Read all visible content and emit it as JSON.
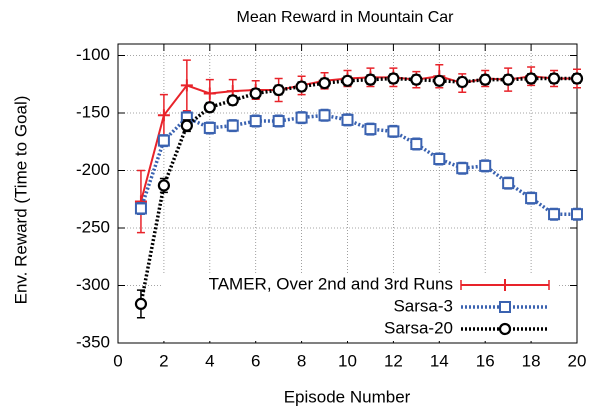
{
  "chart_data": {
    "type": "line",
    "title": "Mean Reward in Mountain Car",
    "xlabel": "Episode Number",
    "ylabel": "Env. Reward (Time to Goal)",
    "x": [
      1,
      2,
      3,
      4,
      5,
      6,
      7,
      8,
      9,
      10,
      11,
      12,
      13,
      14,
      15,
      16,
      17,
      18,
      19,
      20
    ],
    "xlim": [
      0,
      20
    ],
    "xticks": [
      0,
      2,
      4,
      6,
      8,
      10,
      12,
      14,
      16,
      18,
      20
    ],
    "ylim": [
      -350,
      -90
    ],
    "yticks": [
      -350,
      -300,
      -250,
      -200,
      -150,
      -100
    ],
    "grid": true,
    "legend": "lower right",
    "series": [
      {
        "name": "TAMER, Over 2nd and 3rd Runs",
        "color": "#e8232a",
        "marker": "plus",
        "dash": "solid",
        "values": [
          -227,
          -152,
          -126,
          -133,
          -131,
          -130,
          -130,
          -126,
          -122,
          -120,
          -119,
          -119,
          -121,
          -118,
          -124,
          -120,
          -121,
          -118,
          -120,
          -120
        ],
        "errors": [
          27,
          18,
          22,
          12,
          10,
          8,
          10,
          8,
          7,
          7,
          8,
          8,
          7,
          10,
          8,
          7,
          10,
          8,
          7,
          8
        ]
      },
      {
        "name": "Sarsa-3",
        "color": "#3a62b0",
        "marker": "square",
        "dash": "dotted",
        "values": [
          -233,
          -174,
          -154,
          -163,
          -161,
          -157,
          -157,
          -154,
          -152,
          -156,
          -164,
          -166,
          -177,
          -190,
          -198,
          -196,
          -211,
          -224,
          -238,
          -238
        ],
        "errors": [
          5,
          5,
          5,
          5,
          5,
          5,
          5,
          5,
          5,
          5,
          5,
          5,
          5,
          5,
          5,
          5,
          5,
          5,
          5,
          5
        ]
      },
      {
        "name": "Sarsa-20",
        "color": "#000000",
        "marker": "circle",
        "dash": "dotted",
        "values": [
          -316,
          -213,
          -161,
          -145,
          -139,
          -133,
          -130,
          -127,
          -124,
          -122,
          -121,
          -120,
          -121,
          -122,
          -123,
          -121,
          -121,
          -120,
          -120,
          -120
        ],
        "errors": [
          12,
          6,
          5,
          4,
          4,
          4,
          4,
          4,
          4,
          4,
          4,
          4,
          4,
          4,
          4,
          4,
          4,
          4,
          4,
          4
        ]
      }
    ]
  }
}
